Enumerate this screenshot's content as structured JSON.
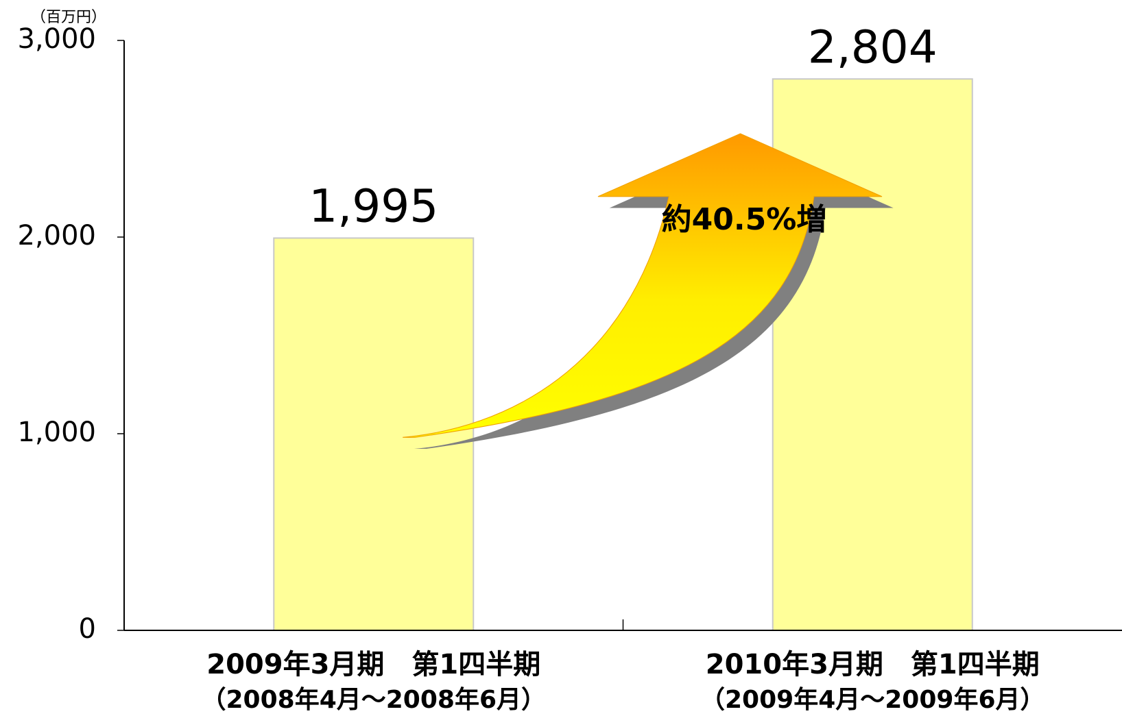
{
  "chart_data": {
    "type": "bar",
    "unit_label": "（百万円）",
    "categories": [
      "2009年3月期　第1四半期",
      "2010年3月期　第1四半期"
    ],
    "category_periods": [
      "（2008年4月～2008年6月）",
      "（2009年4月～2009年6月）"
    ],
    "values": [
      1995,
      2804
    ],
    "value_labels": [
      "1,995",
      "2,804"
    ],
    "color": "#ffff99",
    "ylim": [
      0,
      3000
    ],
    "yticks": [
      0,
      {
        "value": 1000,
        "label": "1,000"
      },
      {
        "value": 2000,
        "label": "2,000"
      },
      {
        "value": 3000,
        "label": "3,000"
      }
    ],
    "annotation": "約40.5%増"
  }
}
